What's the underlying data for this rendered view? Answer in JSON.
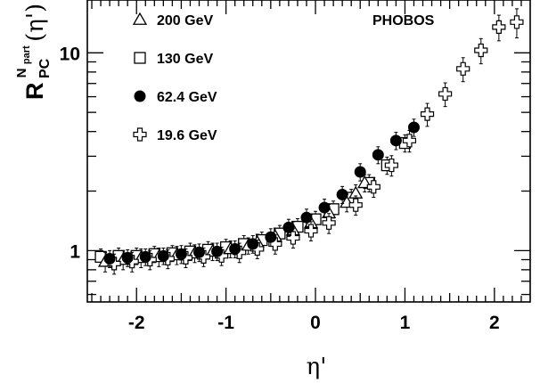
{
  "chart_data": {
    "type": "scatter",
    "experiment_label": "PHOBOS",
    "xlabel": "η'",
    "ylabel": {
      "main": "R",
      "subscript": "PC",
      "superscript_base": "N",
      "superscript_sub": "part",
      "argument": "(η')"
    },
    "xlim": [
      -2.55,
      2.4
    ],
    "ylim": [
      0.55,
      18.5
    ],
    "yscale": "log",
    "x_ticks": [
      "-2",
      "-1",
      "0",
      "1",
      "2"
    ],
    "y_ticks": [
      "1",
      "10"
    ],
    "legend_position": "top-left",
    "series": [
      {
        "name": "200 GeV",
        "marker": "triangle-open",
        "points": [
          [
            -2.35,
            0.88,
            0.1
          ],
          [
            -2.15,
            0.9,
            0.1
          ],
          [
            -1.95,
            0.92,
            0.1
          ],
          [
            -1.75,
            0.93,
            0.1
          ],
          [
            -1.55,
            0.95,
            0.1
          ],
          [
            -1.35,
            0.97,
            0.1
          ],
          [
            -1.15,
            0.99,
            0.1
          ],
          [
            -0.95,
            1.02,
            0.1
          ],
          [
            -0.75,
            1.06,
            0.1
          ],
          [
            -0.65,
            1.1,
            0.11
          ],
          [
            -0.45,
            1.18,
            0.12
          ],
          [
            -0.25,
            1.27,
            0.13
          ],
          [
            -0.05,
            1.38,
            0.14
          ],
          [
            0.15,
            1.55,
            0.16
          ],
          [
            0.35,
            1.75,
            0.18
          ],
          [
            0.45,
            1.95,
            0.2
          ],
          [
            0.55,
            2.2,
            0.22
          ]
        ]
      },
      {
        "name": "130 GeV",
        "marker": "square-open",
        "points": [
          [
            -2.4,
            0.93,
            0.09
          ],
          [
            -2.2,
            0.94,
            0.09
          ],
          [
            -2.0,
            0.94,
            0.09
          ],
          [
            -1.8,
            0.96,
            0.09
          ],
          [
            -1.6,
            0.97,
            0.09
          ],
          [
            -1.4,
            0.99,
            0.1
          ],
          [
            -1.2,
            1.01,
            0.1
          ],
          [
            -1.0,
            1.04,
            0.1
          ],
          [
            -0.8,
            1.08,
            0.11
          ],
          [
            -0.6,
            1.13,
            0.11
          ],
          [
            -0.4,
            1.22,
            0.12
          ],
          [
            -0.2,
            1.32,
            0.13
          ],
          [
            0.0,
            1.44,
            0.14
          ],
          [
            0.2,
            1.62,
            0.16
          ],
          [
            0.4,
            1.85,
            0.19
          ],
          [
            0.6,
            2.2,
            0.22
          ],
          [
            0.8,
            2.7,
            0.27
          ],
          [
            1.0,
            3.5,
            0.35
          ]
        ]
      },
      {
        "name": "62.4 GeV",
        "marker": "circle-filled",
        "points": [
          [
            -2.3,
            0.91,
            0.09
          ],
          [
            -2.1,
            0.92,
            0.09
          ],
          [
            -1.9,
            0.93,
            0.09
          ],
          [
            -1.7,
            0.94,
            0.09
          ],
          [
            -1.5,
            0.96,
            0.1
          ],
          [
            -1.3,
            0.98,
            0.1
          ],
          [
            -1.1,
            0.99,
            0.1
          ],
          [
            -0.9,
            1.02,
            0.1
          ],
          [
            -0.7,
            1.08,
            0.11
          ],
          [
            -0.5,
            1.17,
            0.12
          ],
          [
            -0.3,
            1.31,
            0.13
          ],
          [
            -0.1,
            1.47,
            0.15
          ],
          [
            0.1,
            1.65,
            0.17
          ],
          [
            0.3,
            1.92,
            0.19
          ],
          [
            0.5,
            2.5,
            0.25
          ],
          [
            0.7,
            3.05,
            0.3
          ],
          [
            0.9,
            3.6,
            0.36
          ],
          [
            1.1,
            4.2,
            0.42
          ]
        ]
      },
      {
        "name": "19.6 GeV",
        "marker": "cross-open",
        "points": [
          [
            -2.25,
            0.86,
            0.1
          ],
          [
            -2.05,
            0.88,
            0.1
          ],
          [
            -1.85,
            0.9,
            0.1
          ],
          [
            -1.65,
            0.91,
            0.1
          ],
          [
            -1.45,
            0.92,
            0.1
          ],
          [
            -1.25,
            0.93,
            0.1
          ],
          [
            -1.05,
            0.94,
            0.1
          ],
          [
            -0.85,
            0.98,
            0.11
          ],
          [
            -0.65,
            1.02,
            0.11
          ],
          [
            -0.45,
            1.08,
            0.12
          ],
          [
            -0.25,
            1.16,
            0.13
          ],
          [
            -0.05,
            1.26,
            0.14
          ],
          [
            0.15,
            1.38,
            0.16
          ],
          [
            0.45,
            1.7,
            0.19
          ],
          [
            0.65,
            2.1,
            0.24
          ],
          [
            0.85,
            2.7,
            0.32
          ],
          [
            1.05,
            3.6,
            0.45
          ],
          [
            1.25,
            4.9,
            0.65
          ],
          [
            1.45,
            6.2,
            0.85
          ],
          [
            1.65,
            8.3,
            1.15
          ],
          [
            1.85,
            10.3,
            1.5
          ],
          [
            2.05,
            13.5,
            2.0
          ],
          [
            2.25,
            14.3,
            2.4
          ]
        ]
      }
    ]
  }
}
